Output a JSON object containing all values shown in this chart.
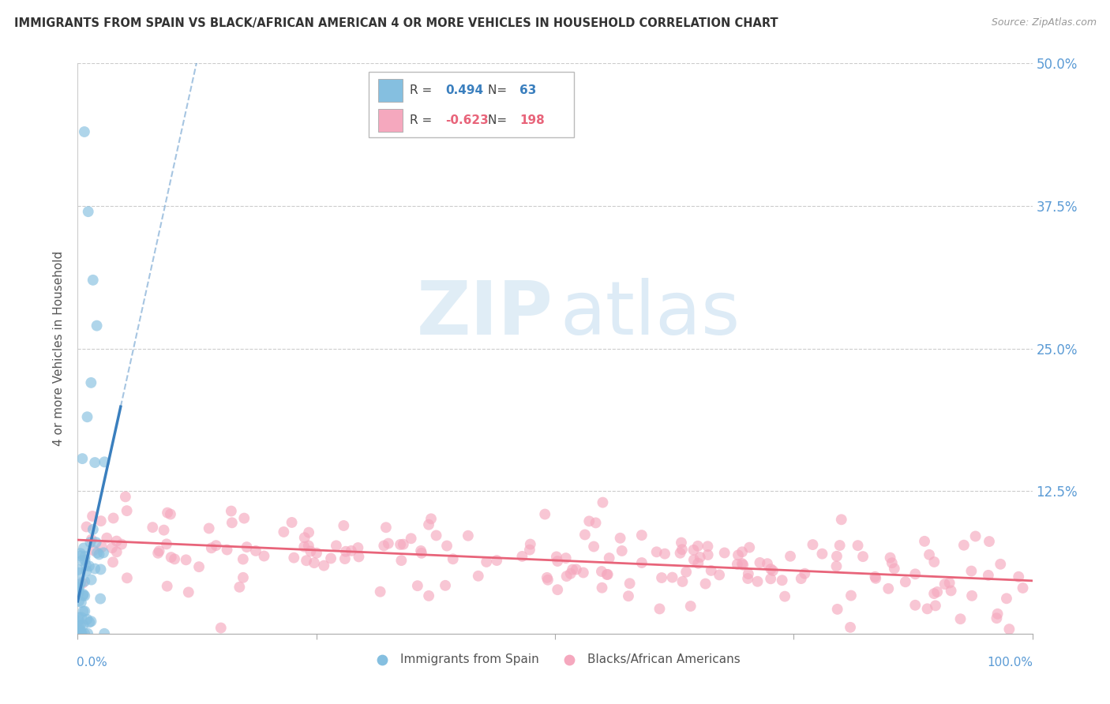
{
  "title": "IMMIGRANTS FROM SPAIN VS BLACK/AFRICAN AMERICAN 4 OR MORE VEHICLES IN HOUSEHOLD CORRELATION CHART",
  "source": "Source: ZipAtlas.com",
  "ylabel": "4 or more Vehicles in Household",
  "ytick_labels": [
    "",
    "12.5%",
    "25.0%",
    "37.5%",
    "50.0%"
  ],
  "yticks": [
    0.0,
    0.125,
    0.25,
    0.375,
    0.5
  ],
  "xlim": [
    0.0,
    1.0
  ],
  "ylim": [
    0.0,
    0.5
  ],
  "legend_blue_R": "0.494",
  "legend_blue_N": "63",
  "legend_pink_R": "-0.623",
  "legend_pink_N": "198",
  "legend_label_blue": "Immigrants from Spain",
  "legend_label_pink": "Blacks/African Americans",
  "blue_color": "#85bfe0",
  "pink_color": "#f5a8be",
  "blue_line_color": "#3a7fbe",
  "pink_line_color": "#e8647a",
  "background_color": "#ffffff",
  "grid_color": "#cccccc",
  "title_color": "#333333",
  "axis_label_color": "#5b9bd5",
  "seed": 42,
  "blue_n": 63,
  "pink_n": 198
}
